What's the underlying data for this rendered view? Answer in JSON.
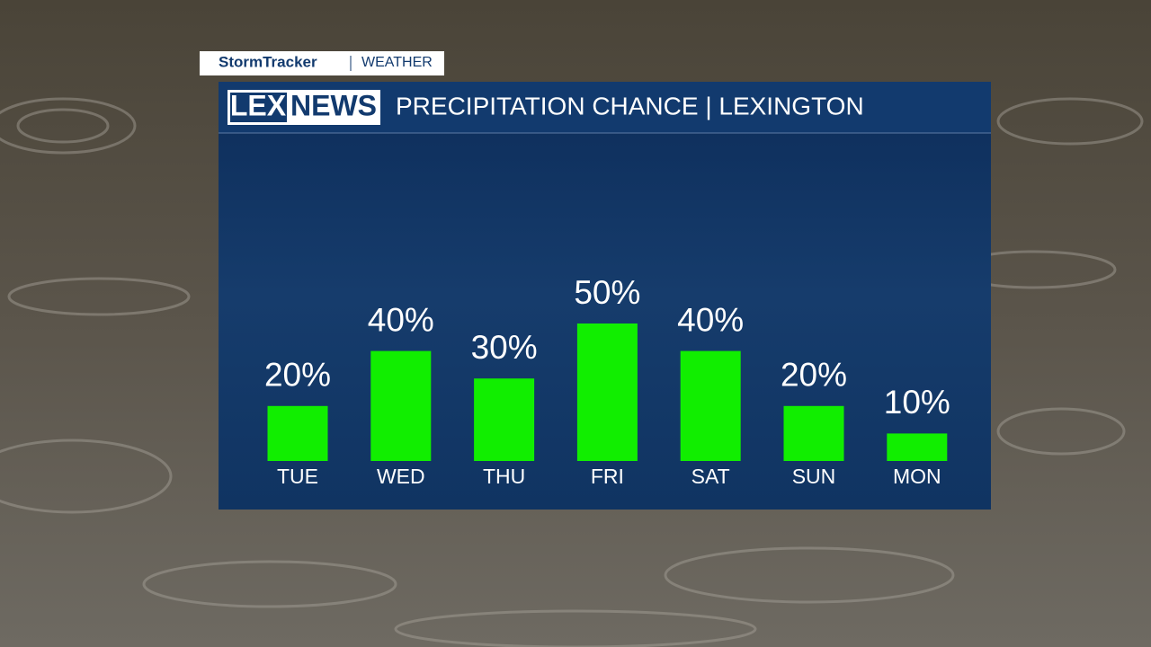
{
  "branding": {
    "network": "StormTracker",
    "section": "WEATHER",
    "logo_left": "LEX",
    "logo_right": "NEWS"
  },
  "chart_data": {
    "type": "bar",
    "title": "PRECIPITATION CHANCE | LEXINGTON",
    "categories": [
      "TUE",
      "WED",
      "THU",
      "FRI",
      "SAT",
      "SUN",
      "MON"
    ],
    "values": [
      20,
      40,
      30,
      50,
      40,
      20,
      10
    ],
    "value_labels": [
      "20%",
      "40%",
      "30%",
      "50%",
      "40%",
      "20%",
      "10%"
    ],
    "color": "#11ee00"
  }
}
